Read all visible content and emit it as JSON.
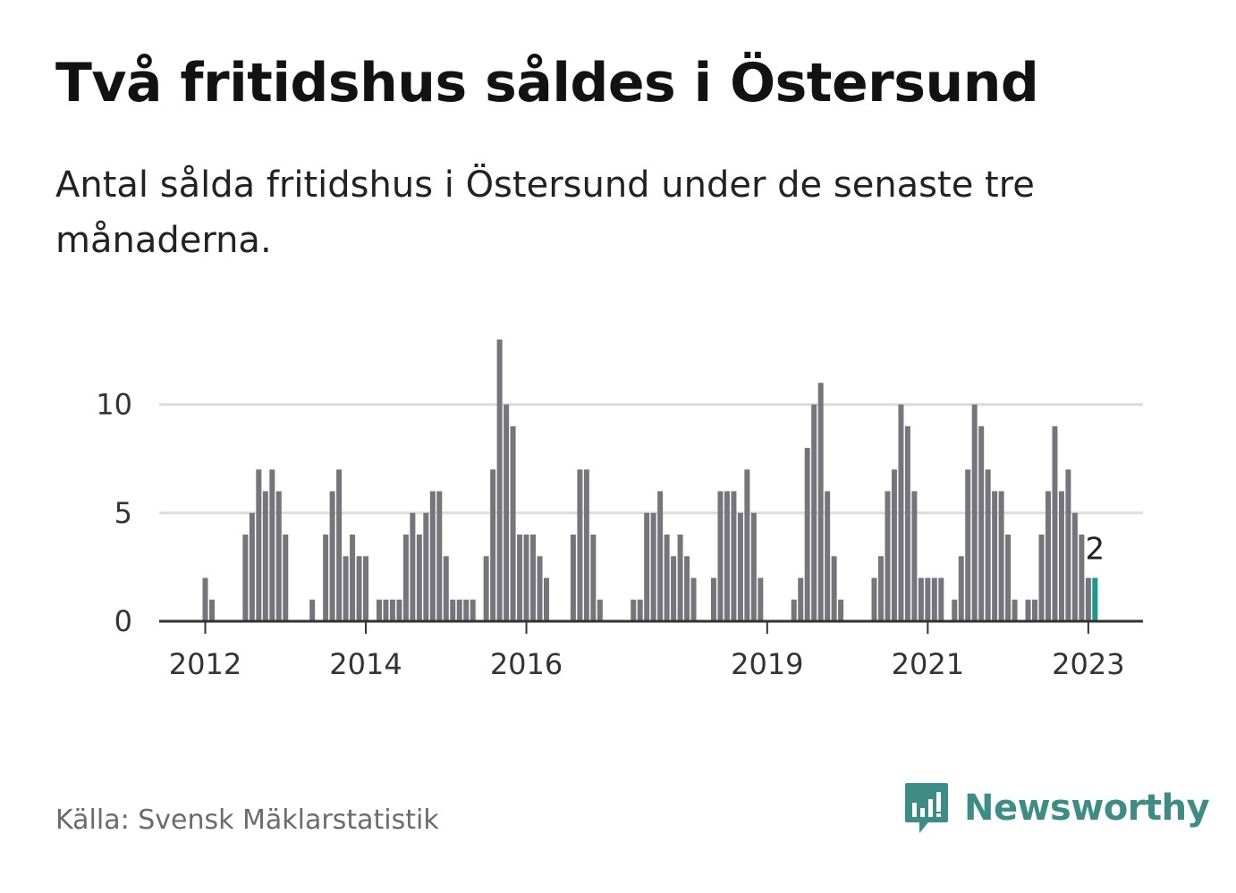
{
  "title": "Två fritidshus såldes i Östersund",
  "subtitle": "Antal sålda fritidshus i Östersund under de senaste tre månaderna.",
  "source": "Källa: Svensk Mäklarstatistik",
  "brand": {
    "name": "Newsworthy",
    "icon": "newsworthy-logo-icon",
    "color": "#3e8c86"
  },
  "colors": {
    "bar": "#76757b",
    "highlight": "#1a9a8f",
    "grid": "#dddddd",
    "axis": "#333333"
  },
  "chart_data": {
    "type": "bar",
    "ylim": [
      0,
      13
    ],
    "yticks": [
      0,
      5,
      10
    ],
    "xtick_labels": [
      {
        "label": "2012",
        "index": 0
      },
      {
        "label": "2014",
        "index": 24
      },
      {
        "label": "2016",
        "index": 48
      },
      {
        "label": "2019",
        "index": 84
      },
      {
        "label": "2021",
        "index": 108
      },
      {
        "label": "2023",
        "index": 132
      }
    ],
    "start_year": 2012,
    "grid": true,
    "values": [
      2,
      1,
      0,
      0,
      0,
      0,
      4,
      5,
      7,
      6,
      7,
      6,
      4,
      0,
      0,
      0,
      1,
      0,
      4,
      6,
      7,
      3,
      4,
      3,
      3,
      0,
      1,
      1,
      1,
      1,
      4,
      5,
      4,
      5,
      6,
      6,
      3,
      1,
      1,
      1,
      1,
      0,
      3,
      7,
      13,
      10,
      9,
      4,
      4,
      4,
      3,
      2,
      0,
      0,
      0,
      4,
      7,
      7,
      4,
      1,
      0,
      0,
      0,
      0,
      1,
      1,
      5,
      5,
      6,
      4,
      3,
      4,
      3,
      2,
      0,
      0,
      2,
      6,
      6,
      6,
      5,
      7,
      5,
      2,
      0,
      0,
      0,
      0,
      1,
      2,
      8,
      10,
      11,
      6,
      3,
      1,
      0,
      0,
      0,
      0,
      2,
      3,
      6,
      7,
      10,
      9,
      6,
      2,
      2,
      2,
      2,
      0,
      1,
      3,
      7,
      10,
      9,
      7,
      6,
      6,
      4,
      1,
      0,
      1,
      1,
      4,
      6,
      9,
      6,
      7,
      5,
      4,
      2,
      2
    ],
    "highlight_label": "2"
  }
}
